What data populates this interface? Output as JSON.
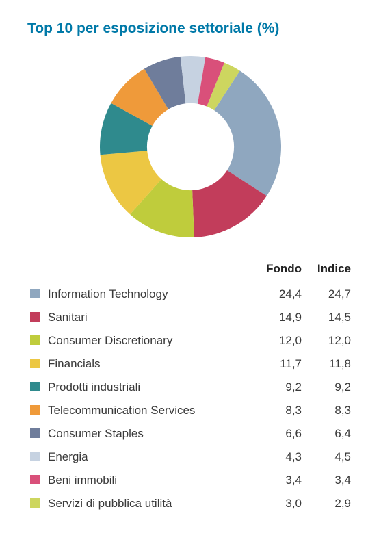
{
  "title": "Top 10 per esposizione settoriale (%)",
  "chart": {
    "type": "donut",
    "background_color": "#ffffff",
    "inner_radius_ratio": 0.48,
    "start_angle_deg": -57,
    "direction": "clockwise",
    "slices": [
      {
        "label": "Information Technology",
        "value": 24.4,
        "color": "#8fa7bf"
      },
      {
        "label": "Sanitari",
        "value": 14.9,
        "color": "#c23d5b"
      },
      {
        "label": "Consumer Discretionary",
        "value": 12.0,
        "color": "#bfcc3c"
      },
      {
        "label": "Financials",
        "value": 11.7,
        "color": "#ecc743"
      },
      {
        "label": "Prodotti industriali",
        "value": 9.2,
        "color": "#2f8a8d"
      },
      {
        "label": "Telecommunication Services",
        "value": 8.3,
        "color": "#ef9a3a"
      },
      {
        "label": "Consumer Staples",
        "value": 6.6,
        "color": "#6f7d9b"
      },
      {
        "label": "Energia",
        "value": 4.3,
        "color": "#c6d2e1"
      },
      {
        "label": "Beni immobili",
        "value": 3.4,
        "color": "#d9507a"
      },
      {
        "label": "Servizi di pubblica utilità",
        "value": 3.0,
        "color": "#cdd65f"
      }
    ]
  },
  "table": {
    "columns": {
      "fondo": "Fondo",
      "indice": "Indice"
    },
    "rows": [
      {
        "color": "#8fa7bf",
        "label": "Information Technology",
        "fondo": "24,4",
        "indice": "24,7"
      },
      {
        "color": "#c23d5b",
        "label": "Sanitari",
        "fondo": "14,9",
        "indice": "14,5"
      },
      {
        "color": "#bfcc3c",
        "label": "Consumer Discretionary",
        "fondo": "12,0",
        "indice": "12,0"
      },
      {
        "color": "#ecc743",
        "label": "Financials",
        "fondo": "11,7",
        "indice": "11,8"
      },
      {
        "color": "#2f8a8d",
        "label": "Prodotti industriali",
        "fondo": "9,2",
        "indice": "9,2"
      },
      {
        "color": "#ef9a3a",
        "label": "Telecommunication Services",
        "fondo": "8,3",
        "indice": "8,3"
      },
      {
        "color": "#6f7d9b",
        "label": "Consumer Staples",
        "fondo": "6,6",
        "indice": "6,4"
      },
      {
        "color": "#c6d2e1",
        "label": "Energia",
        "fondo": "4,3",
        "indice": "4,5"
      },
      {
        "color": "#d9507a",
        "label": "Beni immobili",
        "fondo": "3,4",
        "indice": "3,4"
      },
      {
        "color": "#cdd65f",
        "label": "Servizi di pubblica utilità",
        "fondo": "3,0",
        "indice": "2,9"
      }
    ]
  }
}
